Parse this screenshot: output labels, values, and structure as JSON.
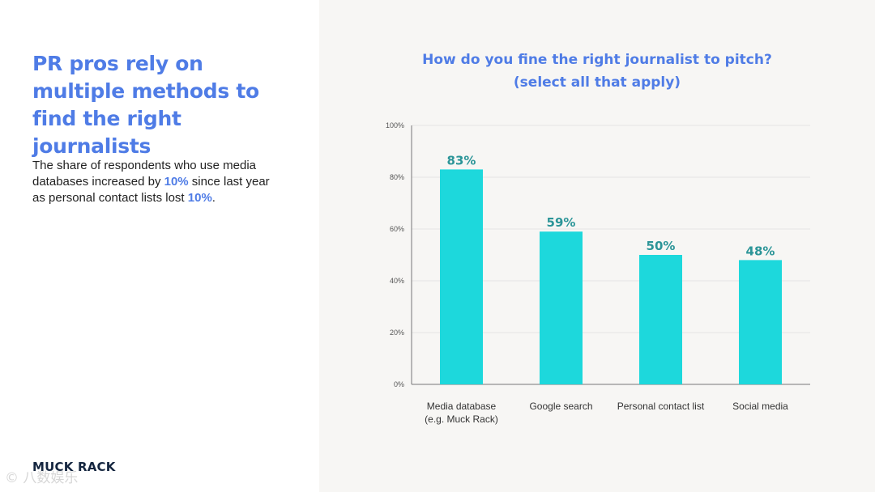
{
  "left": {
    "headline": "PR pros rely on multiple methods to find the right journalists",
    "body": {
      "part1": "The share of respondents who use media databases increased by ",
      "highlight1": "10%",
      "part2": " since last year as personal contact lists lost ",
      "highlight2": "10%",
      "part3": "."
    },
    "logo": "MUCK RACK",
    "watermark": "© 八数娱乐"
  },
  "colors": {
    "accent": "#4f7ce6",
    "bar": "#1dd8dc",
    "bar_label": "#2c9598",
    "grid": "#e4e4e4",
    "axis": "#777777",
    "tick_text": "#555555",
    "category_text": "#333333"
  },
  "chart_data": {
    "type": "bar",
    "title_lines": [
      "How do you fine the right journalist to pitch?",
      "(select all that apply)"
    ],
    "categories": [
      [
        "Media database",
        "(e.g. Muck Rack)"
      ],
      [
        "Google search"
      ],
      [
        "Personal contact list"
      ],
      [
        "Social media"
      ]
    ],
    "values": [
      83,
      59,
      50,
      48
    ],
    "data_labels": [
      "83%",
      "59%",
      "50%",
      "48%"
    ],
    "yticks": [
      0,
      20,
      40,
      60,
      80,
      100
    ],
    "ytick_labels": [
      "0%",
      "20%",
      "40%",
      "60%",
      "80%",
      "100%"
    ],
    "ylim": [
      0,
      100
    ],
    "grid": true,
    "legend": "none"
  }
}
